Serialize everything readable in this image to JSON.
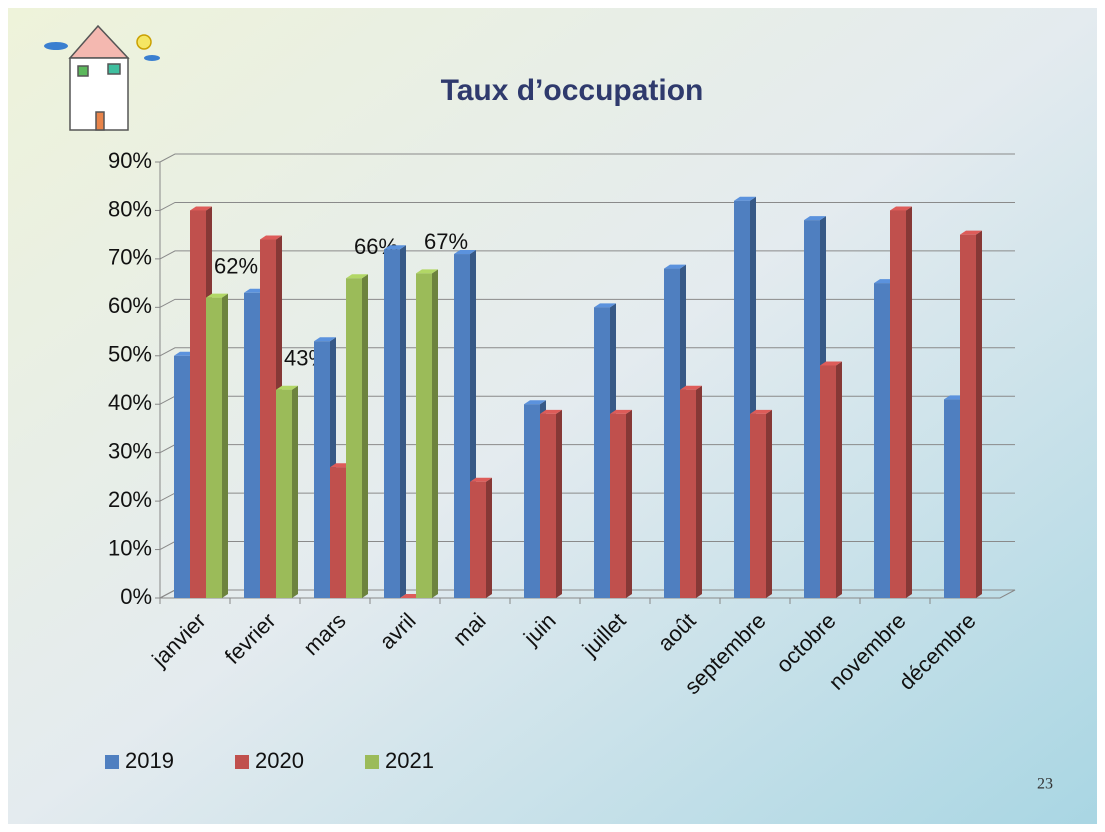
{
  "chart_data": {
    "type": "bar",
    "title": "Taux d’occupation",
    "categories": [
      "janvier",
      "fevrier",
      "mars",
      "avril",
      "mai",
      "juin",
      "juillet",
      "août",
      "septembre",
      "octobre",
      "novembre",
      "décembre"
    ],
    "series": [
      {
        "name": "2019",
        "color": "#4f7fc0",
        "values": [
          50,
          63,
          53,
          72,
          71,
          40,
          60,
          68,
          82,
          78,
          65,
          41
        ]
      },
      {
        "name": "2020",
        "color": "#c0504d",
        "values": [
          80,
          74,
          27,
          0,
          24,
          38,
          38,
          43,
          38,
          48,
          80,
          75
        ]
      },
      {
        "name": "2021",
        "color": "#9bbb59",
        "values": [
          62,
          43,
          66,
          67,
          null,
          null,
          null,
          null,
          null,
          null,
          null,
          null
        ],
        "value_labels": [
          "62%",
          "43%",
          "66%",
          "67%",
          null,
          null,
          null,
          null,
          null,
          null,
          null,
          null
        ]
      }
    ],
    "ylim": [
      0,
      90
    ],
    "yticks": [
      {
        "value": 0,
        "label": "0%"
      },
      {
        "value": 10,
        "label": "10%"
      },
      {
        "value": 20,
        "label": "20%"
      },
      {
        "value": 30,
        "label": "30%"
      },
      {
        "value": 40,
        "label": "40%"
      },
      {
        "value": 50,
        "label": "50%"
      },
      {
        "value": 60,
        "label": "60%"
      },
      {
        "value": 70,
        "label": "70%"
      },
      {
        "value": 80,
        "label": "80%"
      },
      {
        "value": 90,
        "label": "90%"
      }
    ],
    "grid": true,
    "legend": "bottom"
  },
  "page_number": "23"
}
